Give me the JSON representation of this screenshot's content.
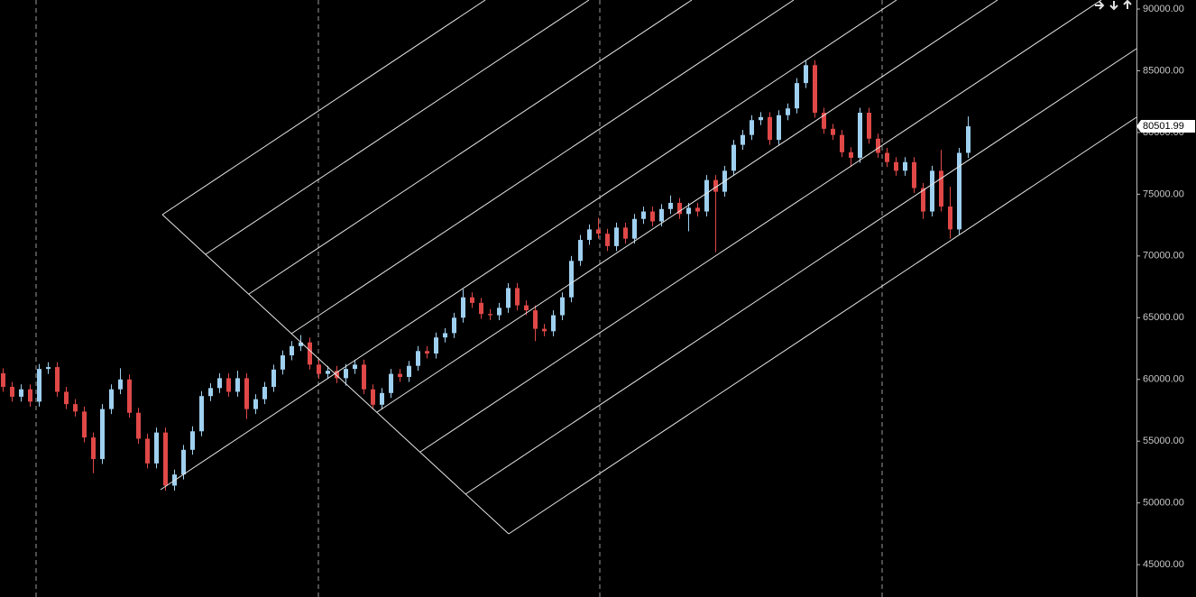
{
  "chart_data": {
    "type": "candlestick",
    "up_color": "#9fd0f0",
    "down_color": "#e04848",
    "ylim": [
      42380,
      90730
    ],
    "yticks": [
      {
        "value": 45000,
        "label": "45000.00"
      },
      {
        "value": 50000,
        "label": "50000.00"
      },
      {
        "value": 55000,
        "label": "55000.00"
      },
      {
        "value": 60000,
        "label": "60000.00"
      },
      {
        "value": 65000,
        "label": "65000.00"
      },
      {
        "value": 70000,
        "label": "70000.00"
      },
      {
        "value": 75000,
        "label": "75000.00"
      },
      {
        "value": 80000,
        "label": "80000.00"
      },
      {
        "value": 85000,
        "label": "85000.00"
      },
      {
        "value": 90000,
        "label": "90000.00"
      }
    ],
    "current_price": 80501.99,
    "open": [
      60500,
      59400,
      58600,
      59200,
      58200,
      60850,
      61000,
      59000,
      58000,
      57400,
      55300,
      53550,
      57600,
      59200,
      60000,
      57300,
      55200,
      53200,
      55700,
      51400,
      52300,
      54300,
      55800,
      58650,
      59300,
      60100,
      59000,
      60100,
      57600,
      58400,
      59400,
      60800,
      61950,
      62700,
      63000,
      61200,
      60450,
      60700,
      60100,
      60850,
      61200,
      59200,
      57950,
      58900,
      60450,
      60200,
      61100,
      62300,
      62100,
      63400,
      63750,
      65000,
      66650,
      66200,
      65300,
      65200,
      65800,
      67400,
      66000,
      65600,
      64100,
      63900,
      65200,
      66650,
      69600,
      71300,
      72150,
      71800,
      70800,
      72300,
      71400,
      73000,
      73600,
      72800,
      73800,
      74300,
      73400,
      73900,
      73600,
      76150,
      75200,
      76900,
      79000,
      79800,
      81000,
      81250,
      79400,
      81400,
      81950,
      84000,
      85450,
      81600,
      80300,
      79800,
      78400,
      77950,
      81600,
      79500,
      78350,
      77600,
      76900,
      77600,
      75500,
      73600,
      76900,
      74000,
      72150,
      78350
    ],
    "high": [
      60900,
      59800,
      59600,
      59600,
      61250,
      61400,
      61400,
      59400,
      58400,
      57800,
      55700,
      58000,
      59600,
      60900,
      60400,
      57700,
      55600,
      56100,
      56100,
      52700,
      54700,
      56200,
      59050,
      59700,
      60500,
      60500,
      60700,
      60500,
      58800,
      59800,
      61200,
      62350,
      63100,
      63600,
      63400,
      61600,
      61100,
      61100,
      61250,
      61600,
      61600,
      59600,
      59300,
      60850,
      60850,
      61500,
      62700,
      62700,
      63800,
      64150,
      65400,
      67300,
      67050,
      66600,
      65700,
      66200,
      67800,
      67800,
      66400,
      66000,
      64500,
      65600,
      67050,
      70000,
      71700,
      72550,
      73100,
      72200,
      72700,
      72700,
      73400,
      74000,
      74000,
      74200,
      74900,
      74700,
      74300,
      74300,
      76550,
      76550,
      77300,
      79400,
      80200,
      81400,
      81650,
      81650,
      81800,
      82350,
      84400,
      85850,
      85850,
      82000,
      80700,
      80200,
      78800,
      82000,
      82000,
      79900,
      78750,
      78000,
      78000,
      78000,
      75900,
      77300,
      78600,
      75600,
      78750,
      81300
    ],
    "low": [
      59000,
      58200,
      58200,
      57800,
      57800,
      60450,
      58600,
      57600,
      57000,
      54900,
      52400,
      53150,
      57200,
      58800,
      56900,
      54800,
      52800,
      52800,
      51000,
      51000,
      51900,
      53900,
      55400,
      58250,
      58900,
      58600,
      58600,
      56800,
      57200,
      58000,
      59000,
      60400,
      61550,
      62300,
      60800,
      60050,
      60050,
      59700,
      59500,
      60450,
      58800,
      57550,
      57550,
      58500,
      59800,
      59800,
      60700,
      61700,
      61700,
      63000,
      63350,
      64600,
      65800,
      64900,
      64800,
      64800,
      65400,
      65600,
      65200,
      63100,
      63500,
      63500,
      64800,
      66250,
      69200,
      70900,
      71400,
      70400,
      70400,
      71000,
      71000,
      72600,
      72400,
      72400,
      73400,
      73000,
      72000,
      73200,
      73200,
      70300,
      74800,
      76500,
      78600,
      79400,
      80600,
      79000,
      79000,
      81000,
      81550,
      83600,
      81200,
      79900,
      79400,
      78000,
      77200,
      77550,
      79100,
      77950,
      77200,
      76500,
      76500,
      75100,
      73000,
      73200,
      73600,
      71400,
      71750,
      77950
    ],
    "close": [
      59400,
      58600,
      59200,
      58200,
      60850,
      61000,
      59000,
      58000,
      57400,
      55300,
      53550,
      57600,
      59200,
      60000,
      57300,
      55200,
      53200,
      55700,
      51400,
      52300,
      54300,
      55800,
      58650,
      59300,
      60100,
      59000,
      60100,
      57600,
      58400,
      59400,
      60800,
      61950,
      62700,
      63000,
      61200,
      60450,
      60700,
      60100,
      60850,
      61200,
      59200,
      57950,
      58900,
      60450,
      60200,
      61100,
      62300,
      62100,
      63400,
      63750,
      65000,
      66650,
      66200,
      65300,
      65200,
      65800,
      67400,
      66000,
      65600,
      64100,
      63900,
      65200,
      66650,
      69600,
      71300,
      72150,
      71800,
      70800,
      72300,
      71400,
      73000,
      73600,
      72800,
      73800,
      74300,
      73400,
      73900,
      73600,
      76150,
      75200,
      76900,
      79000,
      79800,
      81000,
      81250,
      79400,
      81400,
      81950,
      84000,
      85450,
      81600,
      80300,
      79800,
      78400,
      77950,
      81600,
      79500,
      78350,
      77600,
      76900,
      77600,
      75500,
      73600,
      76900,
      74000,
      72150,
      78350,
      80500
    ]
  }
}
